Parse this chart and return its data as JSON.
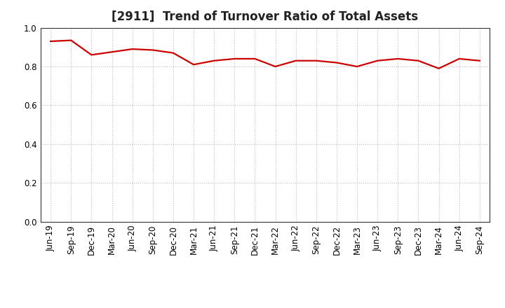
{
  "title": "[2911]  Trend of Turnover Ratio of Total Assets",
  "x_labels": [
    "Jun-19",
    "Sep-19",
    "Dec-19",
    "Mar-20",
    "Jun-20",
    "Sep-20",
    "Dec-20",
    "Mar-21",
    "Jun-21",
    "Sep-21",
    "Dec-21",
    "Mar-22",
    "Jun-22",
    "Sep-22",
    "Dec-22",
    "Mar-23",
    "Jun-23",
    "Sep-23",
    "Dec-23",
    "Mar-24",
    "Jun-24",
    "Sep-24"
  ],
  "values": [
    0.93,
    0.935,
    0.86,
    0.875,
    0.89,
    0.885,
    0.87,
    0.81,
    0.83,
    0.84,
    0.84,
    0.8,
    0.83,
    0.83,
    0.82,
    0.8,
    0.83,
    0.84,
    0.83,
    0.79,
    0.84,
    0.83
  ],
  "line_color": "#cc0000",
  "line_width": 1.6,
  "ylim": [
    0.0,
    1.0
  ],
  "yticks": [
    0.0,
    0.2,
    0.4,
    0.6,
    0.8,
    1.0
  ],
  "grid_color": "#bbbbbb",
  "background_color": "#ffffff",
  "title_fontsize": 12,
  "tick_fontsize": 8.5
}
